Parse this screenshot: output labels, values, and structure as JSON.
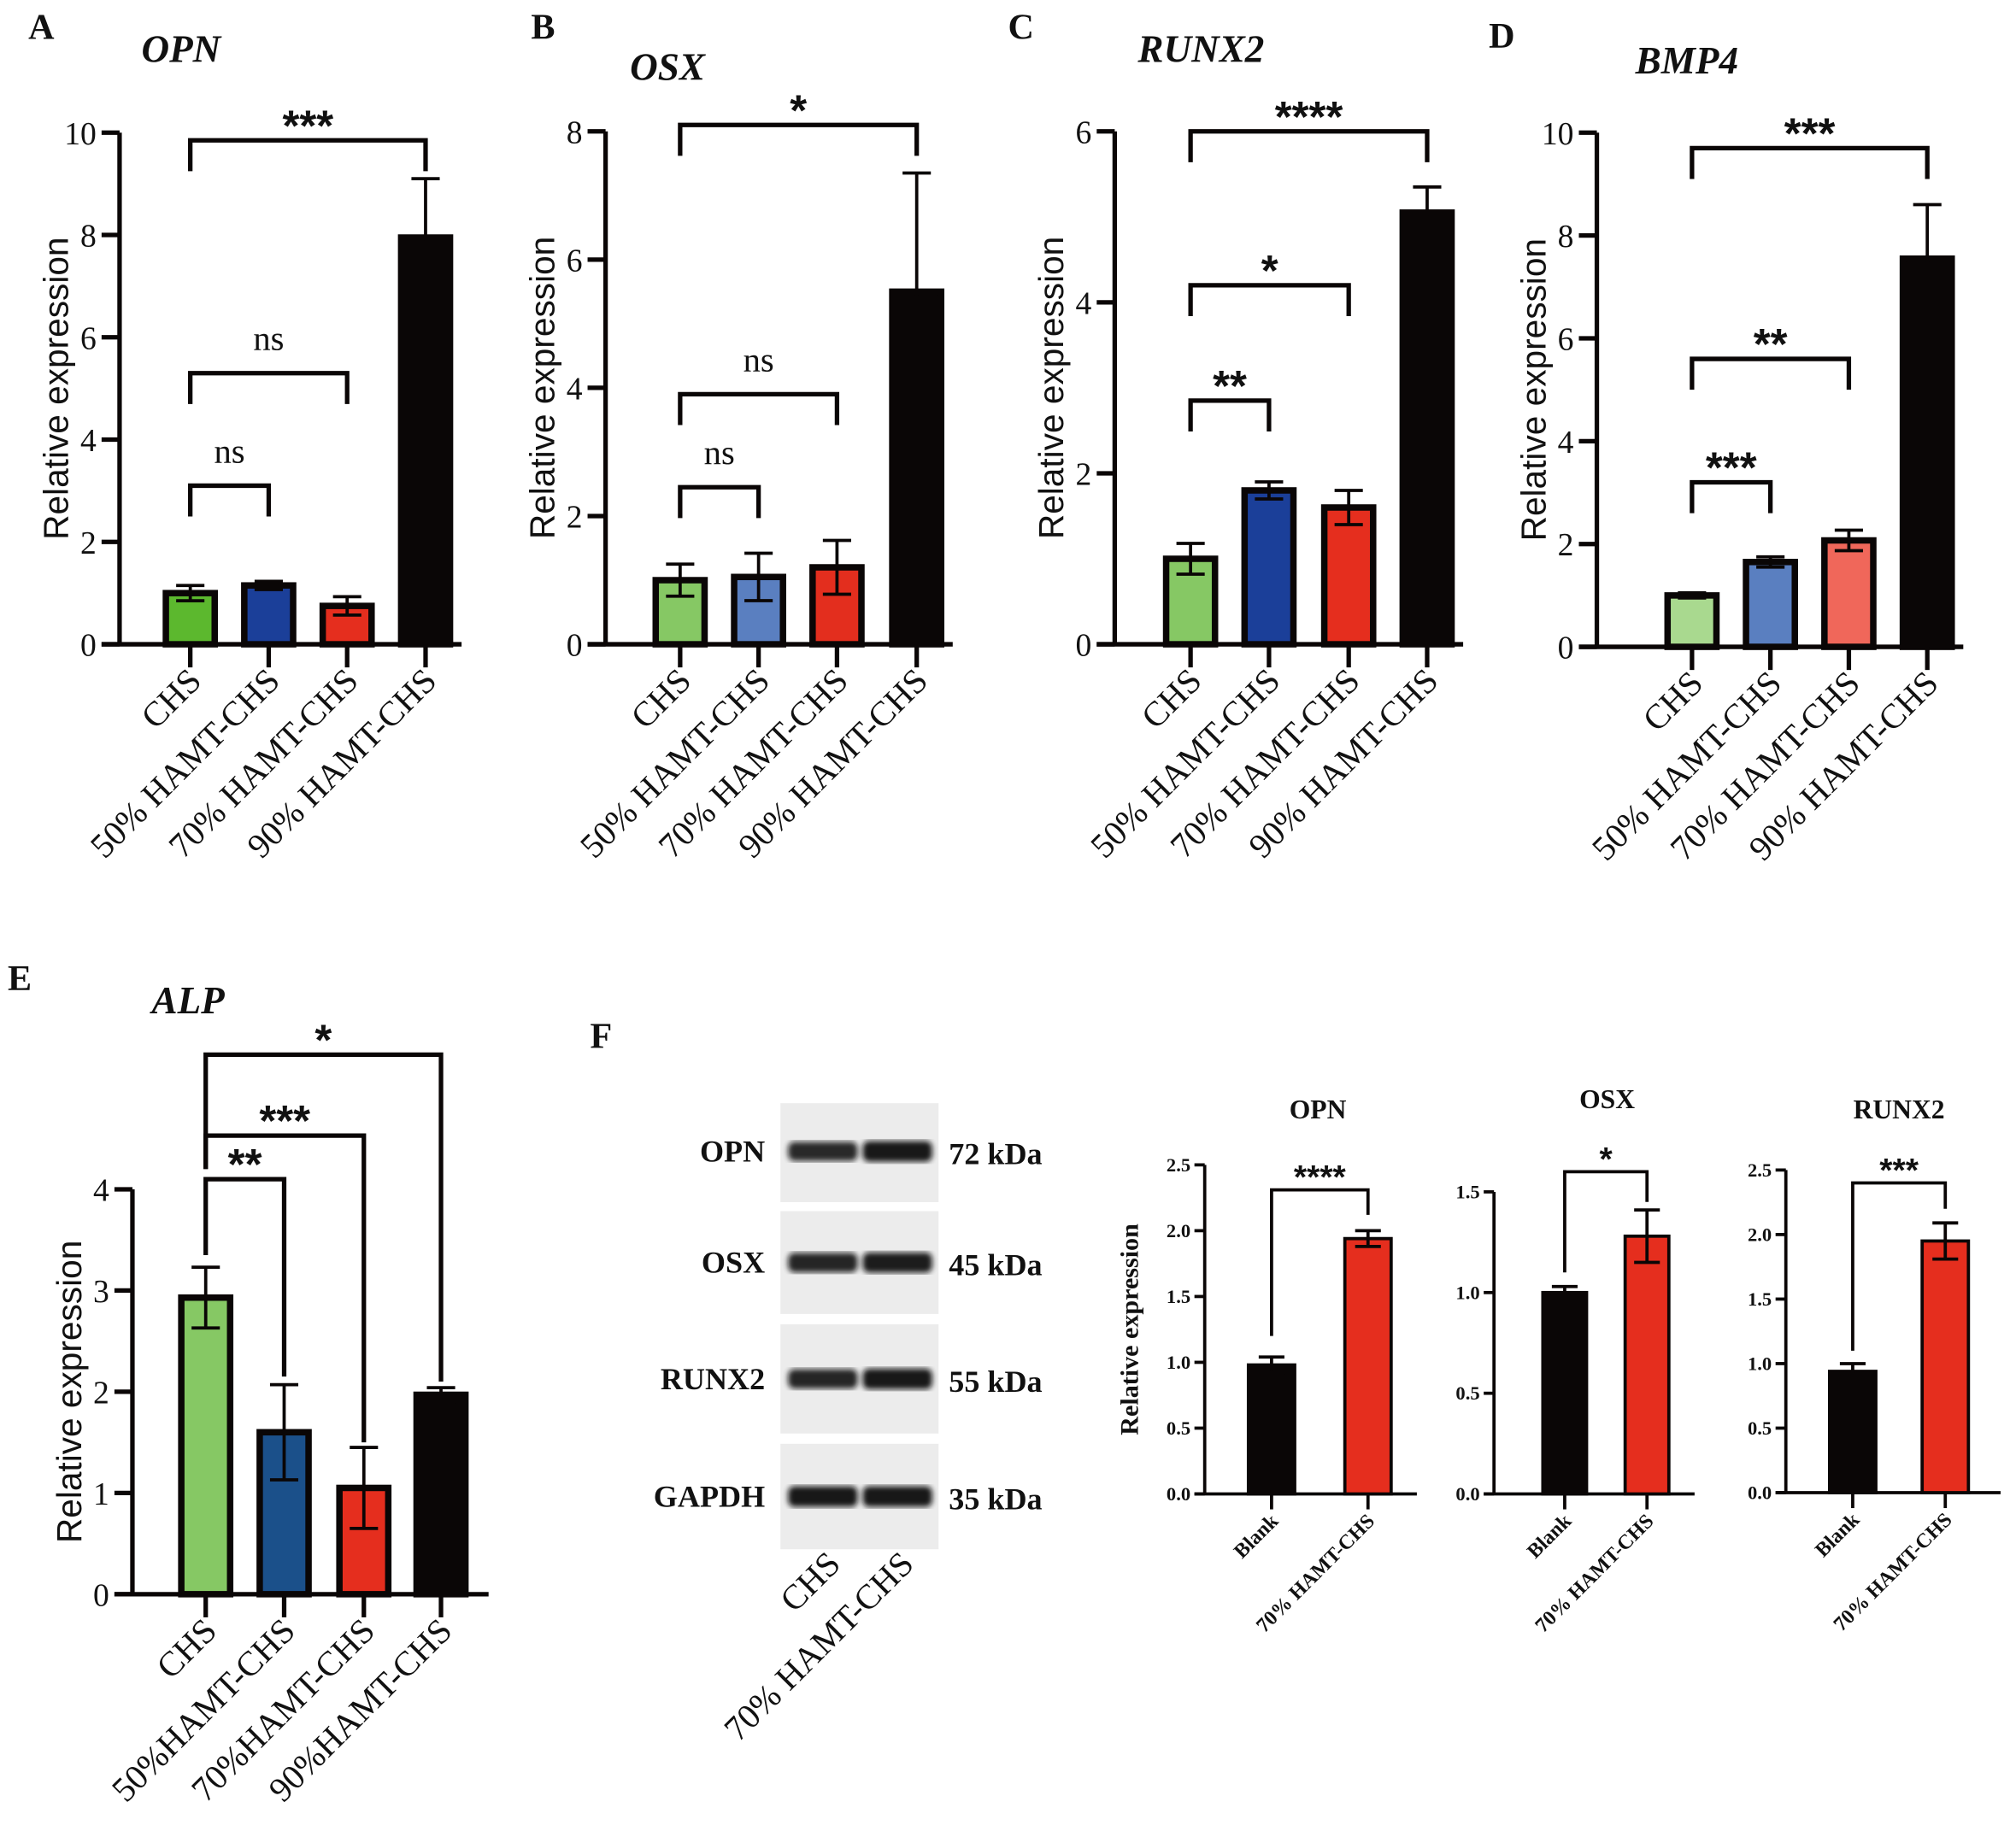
{
  "panel_letters": [
    "A",
    "B",
    "C",
    "D",
    "E",
    "F"
  ],
  "chart_data": [
    {
      "id": "A",
      "type": "bar",
      "title": "OPN",
      "ylabel": "Relative expression",
      "ylim": [
        0,
        10
      ],
      "ticks": [
        0,
        2,
        4,
        6,
        8,
        10
      ],
      "categories": [
        "CHS",
        "50% HAMT-CHS",
        "70% HAMT-CHS",
        "90% HAMT-CHS"
      ],
      "values": [
        1.0,
        1.15,
        0.75,
        7.95
      ],
      "errors": [
        0.15,
        0.08,
        0.18,
        1.15
      ],
      "colors": [
        "#5cb82e",
        "#1b3f99",
        "#e52e1e",
        "#0a0606"
      ],
      "significance": [
        {
          "from": 0,
          "to": 3,
          "label": "***",
          "y": 9.85
        },
        {
          "from": 0,
          "to": 2,
          "label": "ns",
          "y": 5.3
        },
        {
          "from": 0,
          "to": 1,
          "label": "ns",
          "y": 3.1
        }
      ]
    },
    {
      "id": "B",
      "type": "bar",
      "title": "OSX",
      "ylabel": "Relative expression",
      "ylim": [
        0,
        8
      ],
      "ticks": [
        0,
        2,
        4,
        6,
        8
      ],
      "categories": [
        "CHS",
        "50% HAMT-CHS",
        "70% HAMT-CHS",
        "90% HAMT-CHS"
      ],
      "values": [
        1.0,
        1.05,
        1.2,
        5.5
      ],
      "errors": [
        0.25,
        0.37,
        0.42,
        1.85
      ],
      "colors": [
        "#86c864",
        "#5a7fc0",
        "#e32e1e",
        "#0a0606"
      ],
      "significance": [
        {
          "from": 0,
          "to": 3,
          "label": "*",
          "y": 8.1
        },
        {
          "from": 0,
          "to": 2,
          "label": "ns",
          "y": 3.9
        },
        {
          "from": 0,
          "to": 1,
          "label": "ns",
          "y": 2.45
        }
      ]
    },
    {
      "id": "C",
      "type": "bar",
      "title": "RUNX2",
      "ylabel": "Relative expression",
      "ylim": [
        0,
        6
      ],
      "ticks": [
        0,
        2,
        4,
        6
      ],
      "categories": [
        "CHS",
        "50% HAMT-CHS",
        "70% HAMT-CHS",
        "90% HAMT-CHS"
      ],
      "values": [
        1.0,
        1.8,
        1.6,
        5.05
      ],
      "errors": [
        0.18,
        0.1,
        0.2,
        0.3
      ],
      "colors": [
        "#86c864",
        "#1b3f99",
        "#e52e1e",
        "#0a0606"
      ],
      "significance": [
        {
          "from": 0,
          "to": 3,
          "label": "****",
          "y": 6.0
        },
        {
          "from": 0,
          "to": 2,
          "label": "*",
          "y": 4.2
        },
        {
          "from": 0,
          "to": 1,
          "label": "**",
          "y": 2.85
        }
      ]
    },
    {
      "id": "D",
      "type": "bar",
      "title": "BMP4",
      "ylabel": "Relative expression",
      "ylim": [
        0,
        10
      ],
      "ticks": [
        0,
        2,
        4,
        6,
        8,
        10
      ],
      "categories": [
        "CHS",
        "50% HAMT-CHS",
        "70% HAMT-CHS",
        "90% HAMT-CHS"
      ],
      "values": [
        1.0,
        1.65,
        2.07,
        7.55
      ],
      "errors": [
        0.05,
        0.1,
        0.2,
        1.05
      ],
      "colors": [
        "#a9d98f",
        "#5a7fc0",
        "#f0675a",
        "#0a0606"
      ],
      "significance": [
        {
          "from": 0,
          "to": 3,
          "label": "***",
          "y": 9.7
        },
        {
          "from": 0,
          "to": 2,
          "label": "**",
          "y": 5.6
        },
        {
          "from": 0,
          "to": 1,
          "label": "***",
          "y": 3.2
        }
      ]
    },
    {
      "id": "E",
      "type": "bar",
      "title": "ALP",
      "ylabel": "Relative expression",
      "ylim": [
        0,
        4
      ],
      "ticks": [
        0,
        1,
        2,
        3,
        4
      ],
      "categories": [
        "CHS",
        "50%HAMT-CHS",
        "70%HAMT-CHS",
        "90%HAMT-CHS"
      ],
      "values": [
        2.93,
        1.6,
        1.05,
        1.97
      ],
      "errors": [
        0.3,
        0.47,
        0.4,
        0.07
      ],
      "colors": [
        "#86c864",
        "#1b508a",
        "#e52e1e",
        "#0a0606"
      ],
      "significance": [
        {
          "from": 0,
          "to": 3,
          "label": "*",
          "y": 5.33,
          "y_left": 4.2,
          "y_right": 2.1
        },
        {
          "from": 0,
          "to": 2,
          "label": "***",
          "y": 4.53,
          "y_left": 4.2,
          "y_right": 1.5
        },
        {
          "from": 0,
          "to": 1,
          "label": "**",
          "y": 4.1,
          "y_left": 3.35,
          "y_right": 2.15
        }
      ]
    },
    {
      "id": "F-OPN",
      "type": "bar",
      "title": "OPN",
      "ylabel": "Relative expression",
      "ylim": [
        0,
        2.5
      ],
      "ticks": [
        "0.0",
        "0.5",
        "1.0",
        "1.5",
        "2.0",
        "2.5"
      ],
      "categories": [
        "Blank",
        "70% HAMT-CHS"
      ],
      "values": [
        0.98,
        1.94
      ],
      "errors": [
        0.06,
        0.06
      ],
      "colors": [
        "#0a0606",
        "#e52e1e"
      ],
      "significance": [
        {
          "from": 0,
          "to": 1,
          "label": "****",
          "y": 2.31,
          "y_left": 1.2,
          "y_right": 2.12
        }
      ]
    },
    {
      "id": "F-OSX",
      "type": "bar",
      "title": "OSX",
      "ylabel": "",
      "ylim": [
        0,
        1.5
      ],
      "ticks": [
        "0.0",
        "0.5",
        "1.0",
        "1.5"
      ],
      "categories": [
        "Blank",
        "70% HAMT-CHS"
      ],
      "values": [
        1.0,
        1.28
      ],
      "errors": [
        0.03,
        0.13
      ],
      "colors": [
        "#0a0606",
        "#e52e1e"
      ],
      "significance": [
        {
          "from": 0,
          "to": 1,
          "label": "*",
          "y": 1.6,
          "y_left": 1.1,
          "y_right": 1.45
        }
      ]
    },
    {
      "id": "F-RUNX2",
      "type": "bar",
      "title": "RUNX2",
      "ylabel": "",
      "ylim": [
        0,
        2.5
      ],
      "ticks": [
        "0.0",
        "0.5",
        "1.0",
        "1.5",
        "2.0",
        "2.5"
      ],
      "categories": [
        "Blank",
        "70% HAMT-CHS"
      ],
      "values": [
        0.94,
        1.95
      ],
      "errors": [
        0.06,
        0.14
      ],
      "colors": [
        "#0a0606",
        "#e52e1e"
      ],
      "significance": [
        {
          "from": 0,
          "to": 1,
          "label": "***",
          "y": 2.4,
          "y_left": 1.1,
          "y_right": 2.2
        }
      ]
    }
  ],
  "western_blot": {
    "proteins": [
      "OPN",
      "OSX",
      "RUNX2",
      "GAPDH"
    ],
    "sizes": [
      "72 kDa",
      "45 kDa",
      "55 kDa",
      "35 kDa"
    ],
    "lanes": [
      "CHS",
      "70% HAMT-CHS"
    ],
    "band_intensity": [
      [
        0.8,
        1.0
      ],
      [
        0.85,
        0.95
      ],
      [
        0.85,
        1.0
      ],
      [
        1.0,
        1.0
      ]
    ]
  }
}
